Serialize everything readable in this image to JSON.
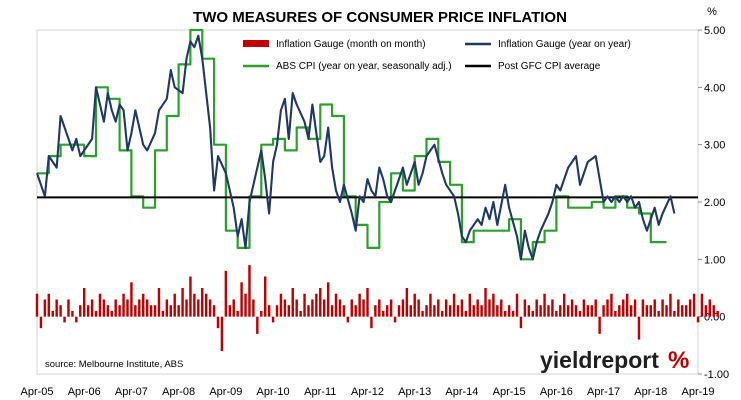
{
  "chart_data": {
    "type": "line",
    "title": "TWO MEASURES OF CONSUMER PRICE INFLATION",
    "ylabel": "%",
    "ylim": [
      -1.0,
      5.0
    ],
    "yticks": [
      "5.00",
      "4.00",
      "3.00",
      "2.00",
      "1.00",
      "0.00",
      "-1.00"
    ],
    "xticks": [
      "Apr-05",
      "Apr-06",
      "Apr-07",
      "Apr-08",
      "Apr-09",
      "Apr-10",
      "Apr-11",
      "Apr-12",
      "Apr-13",
      "Apr-14",
      "Apr-15",
      "Apr-16",
      "Apr-17",
      "Apr-18",
      "Apr-19"
    ],
    "x_start": "Apr-05",
    "legend_position": "top",
    "gridlines": false,
    "series": [
      {
        "name": "Inflation Gauge (month on month)",
        "type": "bar",
        "color": "#c00000",
        "values": [
          0.4,
          -0.2,
          0.3,
          0.4,
          0.1,
          0.3,
          0.2,
          -0.1,
          0.3,
          0.1,
          -0.1,
          0.2,
          0.5,
          0.2,
          0.3,
          0.1,
          0.4,
          0.3,
          0.2,
          0.1,
          0.3,
          0.2,
          0.4,
          0.3,
          0.6,
          0.2,
          0.3,
          0.4,
          0.3,
          0.2,
          0.2,
          0.5,
          0.1,
          0.3,
          0.2,
          0.4,
          0.2,
          0.5,
          0.3,
          0.7,
          0.4,
          0.3,
          0.5,
          0.4,
          0.3,
          0.2,
          -0.2,
          -0.6,
          0.8,
          0.2,
          0.3,
          0.1,
          0.6,
          0.4,
          0.9,
          0.3,
          -0.3,
          0.1,
          0.7,
          0.2,
          -0.1,
          0.2,
          0.4,
          0.3,
          0.2,
          0.5,
          0.3,
          0.1,
          0.4,
          0.2,
          0.3,
          0.4,
          0.5,
          0.3,
          0.6,
          0.2,
          0.4,
          0.3,
          0.2,
          -0.1,
          0.3,
          0.2,
          0.4,
          0.3,
          0.5,
          -0.2,
          0.2,
          0.3,
          0.1,
          0.2,
          0.3,
          -0.1,
          0.2,
          0.3,
          0.5,
          0.2,
          0.4,
          0.3,
          0.1,
          0.2,
          0.4,
          0.2,
          0.3,
          0.1,
          0.3,
          0.2,
          0.4,
          0.2,
          0.3,
          0.1,
          0.4,
          0.2,
          0.3,
          0.2,
          0.5,
          0.3,
          0.4,
          0.2,
          0.3,
          0.1,
          0.2,
          0.1,
          0.4,
          -0.2,
          0.3,
          0.2,
          0.1,
          0.3,
          0.2,
          0.4,
          0.2,
          0.3,
          0.1,
          0.2,
          0.4,
          0.2,
          0.3,
          0.2,
          0.1,
          0.3,
          0.2,
          0.2,
          0.3,
          -0.3,
          0.2,
          0.3,
          0.4,
          0.1,
          0.2,
          0.3,
          0.4,
          0.2,
          0.3,
          -0.4,
          0.3,
          0.2,
          0.2,
          0.3,
          0.1,
          0.3,
          0.2,
          0.4,
          0.1,
          0.3,
          0.2,
          0.2,
          0.3,
          0.4,
          -0.1,
          0.4,
          0.2,
          0.3,
          0.2,
          0.1
        ]
      },
      {
        "name": "Inflation Gauge (year on year)",
        "type": "line",
        "color": "#1f3864",
        "points": [
          [
            0,
            2.5
          ],
          [
            2,
            2.1
          ],
          [
            3,
            2.8
          ],
          [
            5,
            2.6
          ],
          [
            6,
            3.5
          ],
          [
            8,
            3.1
          ],
          [
            9,
            2.9
          ],
          [
            10,
            3.1
          ],
          [
            11,
            2.8
          ],
          [
            12,
            2.9
          ],
          [
            14,
            3.1
          ],
          [
            15,
            4.0
          ],
          [
            16,
            3.7
          ],
          [
            17,
            3.4
          ],
          [
            18,
            3.9
          ],
          [
            19,
            3.6
          ],
          [
            20,
            3.4
          ],
          [
            21,
            3.7
          ],
          [
            22,
            3.6
          ],
          [
            23,
            2.9
          ],
          [
            24,
            3.2
          ],
          [
            25,
            3.6
          ],
          [
            27,
            3.0
          ],
          [
            28,
            2.9
          ],
          [
            30,
            3.2
          ],
          [
            31,
            3.6
          ],
          [
            33,
            3.8
          ],
          [
            34,
            4.3
          ],
          [
            35,
            4.0
          ],
          [
            37,
            3.9
          ],
          [
            38,
            4.5
          ],
          [
            39,
            4.8
          ],
          [
            40,
            4.7
          ],
          [
            41,
            4.9
          ],
          [
            42,
            4.5
          ],
          [
            44,
            3.3
          ],
          [
            45,
            2.2
          ],
          [
            46,
            2.8
          ],
          [
            48,
            2.5
          ],
          [
            50,
            1.9
          ],
          [
            51,
            1.4
          ],
          [
            52,
            1.7
          ],
          [
            53,
            1.2
          ],
          [
            54,
            2.0
          ],
          [
            55,
            2.3
          ],
          [
            57,
            2.9
          ],
          [
            58,
            2.4
          ],
          [
            59,
            1.8
          ],
          [
            60,
            2.7
          ],
          [
            61,
            3.0
          ],
          [
            62,
            3.6
          ],
          [
            63,
            3.8
          ],
          [
            64,
            3.1
          ],
          [
            65,
            3.9
          ],
          [
            66,
            3.7
          ],
          [
            68,
            3.4
          ],
          [
            69,
            3.1
          ],
          [
            70,
            3.7
          ],
          [
            72,
            2.7
          ],
          [
            73,
            2.8
          ],
          [
            74,
            3.3
          ],
          [
            75,
            2.6
          ],
          [
            76,
            2.2
          ],
          [
            77,
            2.0
          ],
          [
            78,
            2.3
          ],
          [
            80,
            1.8
          ],
          [
            81,
            1.5
          ],
          [
            82,
            2.1
          ],
          [
            83,
            2.0
          ],
          [
            84,
            2.4
          ],
          [
            85,
            2.2
          ],
          [
            86,
            2.1
          ],
          [
            87,
            2.6
          ],
          [
            88,
            2.4
          ],
          [
            89,
            2.1
          ],
          [
            90,
            2.0
          ],
          [
            91,
            2.2
          ],
          [
            92,
            2.4
          ],
          [
            93,
            2.6
          ],
          [
            94,
            2.3
          ],
          [
            95,
            2.5
          ],
          [
            96,
            2.7
          ],
          [
            97,
            2.3
          ],
          [
            98,
            2.5
          ],
          [
            99,
            2.8
          ],
          [
            101,
            3.0
          ],
          [
            103,
            2.5
          ],
          [
            104,
            2.3
          ],
          [
            106,
            2.1
          ],
          [
            107,
            1.8
          ],
          [
            108,
            1.4
          ],
          [
            109,
            1.3
          ],
          [
            110,
            1.5
          ],
          [
            112,
            1.7
          ],
          [
            113,
            1.6
          ],
          [
            114,
            1.9
          ],
          [
            115,
            1.7
          ],
          [
            116,
            2.0
          ],
          [
            117,
            1.6
          ],
          [
            119,
            2.3
          ],
          [
            120,
            1.9
          ],
          [
            122,
            1.4
          ],
          [
            123,
            1.0
          ],
          [
            124,
            1.5
          ],
          [
            125,
            1.2
          ],
          [
            126,
            1.0
          ],
          [
            127,
            1.3
          ],
          [
            128,
            1.5
          ],
          [
            130,
            1.8
          ],
          [
            131,
            2.0
          ],
          [
            132,
            2.3
          ],
          [
            133,
            2.2
          ],
          [
            134,
            2.4
          ],
          [
            135,
            2.6
          ],
          [
            137,
            2.8
          ],
          [
            138,
            2.3
          ],
          [
            139,
            2.5
          ],
          [
            140,
            2.7
          ],
          [
            142,
            2.8
          ],
          [
            144,
            2.0
          ],
          [
            145,
            2.1
          ],
          [
            146,
            2.0
          ],
          [
            147,
            2.1
          ],
          [
            148,
            2.0
          ],
          [
            149,
            2.1
          ],
          [
            150,
            2.0
          ],
          [
            151,
            2.1
          ],
          [
            152,
            1.9
          ],
          [
            153,
            2.0
          ],
          [
            154,
            1.7
          ],
          [
            155,
            1.5
          ],
          [
            157,
            1.9
          ],
          [
            158,
            1.6
          ],
          [
            159,
            1.8
          ],
          [
            161,
            2.1
          ],
          [
            162,
            1.8
          ]
        ]
      },
      {
        "name": "ABS CPI (year on year, seasonally adj.)",
        "type": "step",
        "color": "#2ca02c",
        "points": [
          [
            0,
            2.5
          ],
          [
            3,
            2.5
          ],
          [
            3,
            2.8
          ],
          [
            6,
            2.8
          ],
          [
            6,
            3.0
          ],
          [
            9,
            3.0
          ],
          [
            9,
            3.0
          ],
          [
            12,
            3.0
          ],
          [
            12,
            2.8
          ],
          [
            15,
            2.8
          ],
          [
            15,
            4.0
          ],
          [
            18,
            4.0
          ],
          [
            18,
            3.8
          ],
          [
            21,
            3.8
          ],
          [
            21,
            2.9
          ],
          [
            24,
            2.9
          ],
          [
            24,
            2.1
          ],
          [
            27,
            2.1
          ],
          [
            27,
            1.9
          ],
          [
            30,
            1.9
          ],
          [
            30,
            2.9
          ],
          [
            33,
            2.9
          ],
          [
            33,
            3.5
          ],
          [
            36,
            3.5
          ],
          [
            36,
            4.4
          ],
          [
            39,
            4.4
          ],
          [
            39,
            5.0
          ],
          [
            42,
            5.0
          ],
          [
            42,
            4.5
          ],
          [
            45,
            4.5
          ],
          [
            45,
            3.0
          ],
          [
            48,
            3.0
          ],
          [
            48,
            1.5
          ],
          [
            51,
            1.5
          ],
          [
            51,
            1.2
          ],
          [
            54,
            1.2
          ],
          [
            54,
            2.1
          ],
          [
            57,
            2.1
          ],
          [
            57,
            3.0
          ],
          [
            60,
            3.0
          ],
          [
            60,
            3.1
          ],
          [
            63,
            3.1
          ],
          [
            63,
            2.9
          ],
          [
            66,
            2.9
          ],
          [
            66,
            3.3
          ],
          [
            69,
            3.3
          ],
          [
            69,
            3.1
          ],
          [
            72,
            3.1
          ],
          [
            72,
            3.7
          ],
          [
            75,
            3.7
          ],
          [
            75,
            3.5
          ],
          [
            78,
            3.5
          ],
          [
            78,
            2.1
          ],
          [
            81,
            2.1
          ],
          [
            81,
            1.6
          ],
          [
            84,
            1.6
          ],
          [
            84,
            1.2
          ],
          [
            87,
            1.2
          ],
          [
            87,
            2.0
          ],
          [
            90,
            2.0
          ],
          [
            90,
            2.5
          ],
          [
            93,
            2.5
          ],
          [
            93,
            2.2
          ],
          [
            96,
            2.2
          ],
          [
            96,
            2.8
          ],
          [
            99,
            2.8
          ],
          [
            99,
            3.1
          ],
          [
            102,
            3.1
          ],
          [
            102,
            2.7
          ],
          [
            105,
            2.7
          ],
          [
            105,
            2.3
          ],
          [
            108,
            2.3
          ],
          [
            108,
            1.3
          ],
          [
            111,
            1.3
          ],
          [
            111,
            1.5
          ],
          [
            114,
            1.5
          ],
          [
            114,
            1.5
          ],
          [
            117,
            1.5
          ],
          [
            117,
            1.5
          ],
          [
            120,
            1.5
          ],
          [
            120,
            1.7
          ],
          [
            123,
            1.7
          ],
          [
            123,
            1.0
          ],
          [
            126,
            1.0
          ],
          [
            126,
            1.3
          ],
          [
            129,
            1.3
          ],
          [
            129,
            1.5
          ],
          [
            132,
            1.5
          ],
          [
            132,
            2.1
          ],
          [
            135,
            2.1
          ],
          [
            135,
            1.9
          ],
          [
            138,
            1.9
          ],
          [
            138,
            1.9
          ],
          [
            141,
            1.9
          ],
          [
            141,
            2.0
          ],
          [
            144,
            2.0
          ],
          [
            144,
            1.9
          ],
          [
            147,
            1.9
          ],
          [
            147,
            2.1
          ],
          [
            150,
            2.1
          ],
          [
            150,
            1.9
          ],
          [
            153,
            1.9
          ],
          [
            153,
            1.8
          ],
          [
            156,
            1.8
          ],
          [
            156,
            1.3
          ],
          [
            160,
            1.3
          ]
        ]
      },
      {
        "name": "Post GFC CPI average",
        "type": "line",
        "color": "#000000",
        "values": [
          2.08
        ]
      }
    ]
  },
  "source_note": "source: Melbourne Institute, ABS",
  "brand": {
    "name": "yieldreport",
    "symbol": "%",
    "text_color": "#1f1f1f",
    "symbol_color": "#c00000"
  }
}
